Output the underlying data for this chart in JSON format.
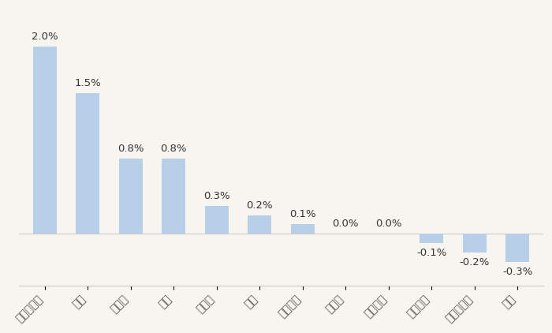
{
  "categories": [
    "调味发酵品",
    "啤酒",
    "肉制品",
    "乳品",
    "保健品",
    "白酒",
    "烘焙食品",
    "软饮料",
    "其他食品",
    "其他酒类",
    "预加工食品",
    "零食"
  ],
  "values": [
    2.0,
    1.5,
    0.8,
    0.8,
    0.3,
    0.2,
    0.1,
    0.0,
    0.0,
    -0.1,
    -0.2,
    -0.3
  ],
  "bar_color": "#b8cfe8",
  "background_color": "#f7f5f0",
  "ylim": [
    -0.55,
    2.4
  ],
  "label_fontsize": 9.5,
  "tick_fontsize": 9,
  "bar_width": 0.55
}
